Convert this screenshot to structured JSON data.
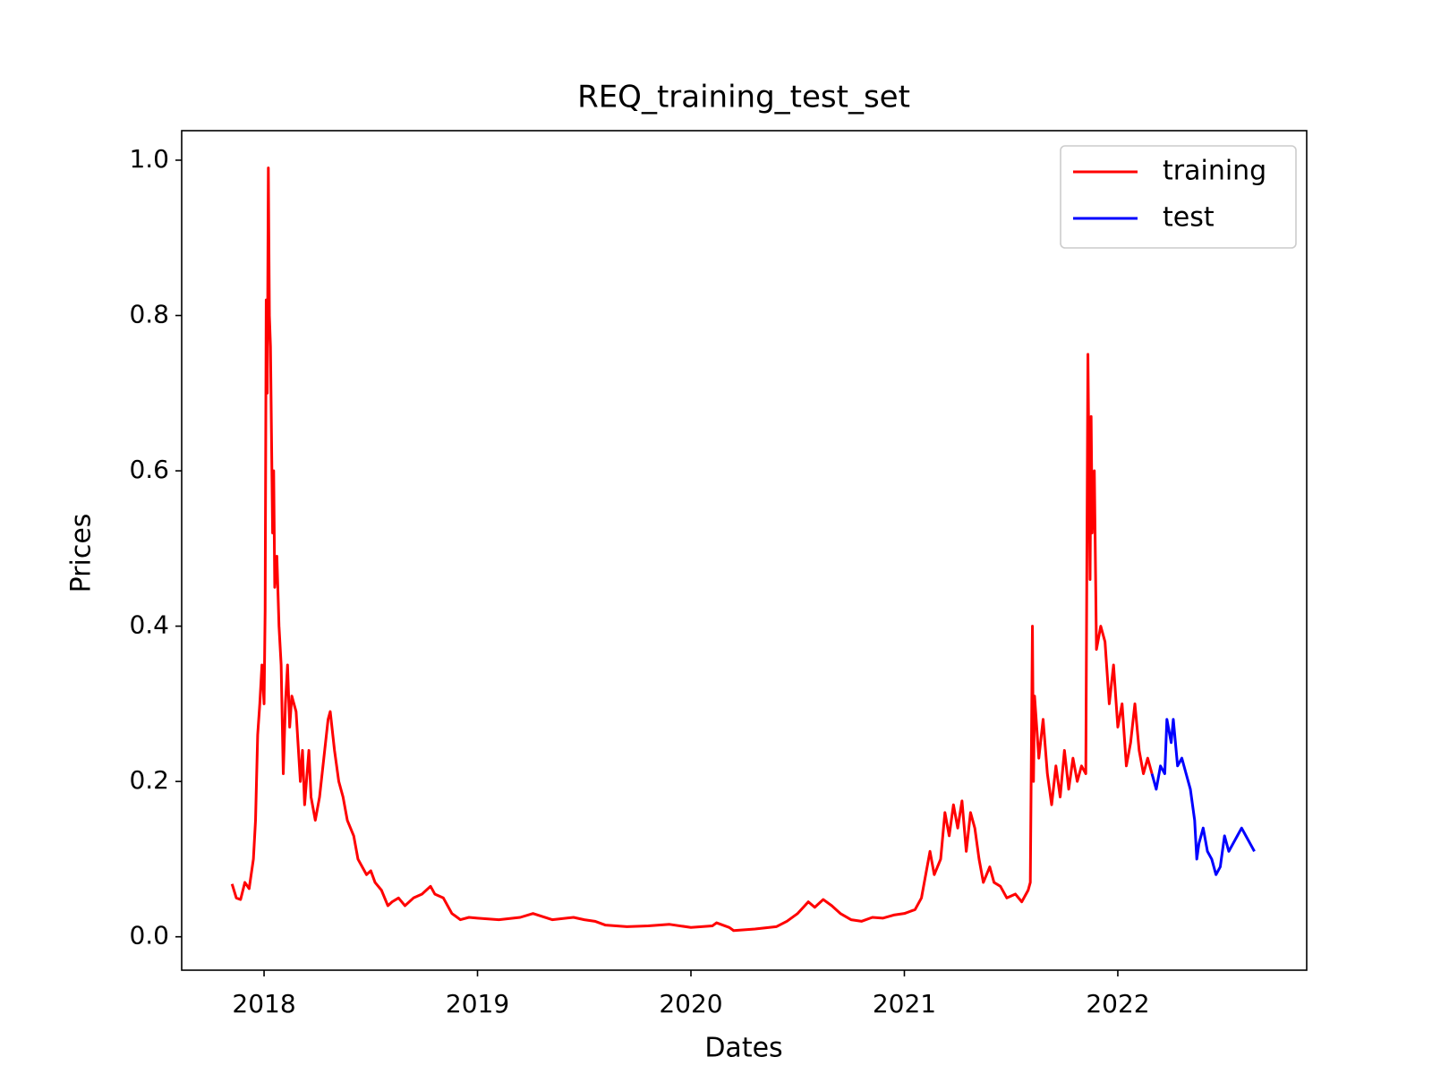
{
  "chart_data": {
    "type": "line",
    "title": "REQ_training_test_set",
    "xlabel": "Dates",
    "ylabel": "Prices",
    "xlim": [
      2017.614,
      2022.885
    ],
    "xticks": [
      2018,
      2019,
      2020,
      2021,
      2022
    ],
    "ylim": [
      -0.043,
      1.038
    ],
    "yticks": [
      {
        "value": 0,
        "label": "0.0"
      },
      0.2,
      0.4,
      0.6,
      0.8,
      {
        "value": 1,
        "label": "1.0"
      }
    ],
    "grid": false,
    "legend": "upper right",
    "series": [
      {
        "name": "training",
        "color": "#ff0000",
        "x": [
          2017.85,
          2017.87,
          2017.89,
          2017.91,
          2017.93,
          2017.95,
          2017.96,
          2017.97,
          2017.98,
          2017.99,
          2018.0,
          2018.005,
          2018.01,
          2018.015,
          2018.02,
          2018.025,
          2018.03,
          2018.04,
          2018.045,
          2018.05,
          2018.06,
          2018.07,
          2018.08,
          2018.09,
          2018.1,
          2018.11,
          2018.12,
          2018.13,
          2018.15,
          2018.17,
          2018.18,
          2018.19,
          2018.21,
          2018.22,
          2018.24,
          2018.26,
          2018.28,
          2018.3,
          2018.31,
          2018.33,
          2018.35,
          2018.37,
          2018.39,
          2018.42,
          2018.44,
          2018.46,
          2018.48,
          2018.5,
          2018.52,
          2018.55,
          2018.58,
          2018.6,
          2018.63,
          2018.66,
          2018.7,
          2018.74,
          2018.78,
          2018.8,
          2018.84,
          2018.88,
          2018.92,
          2018.96,
          2019.0,
          2019.1,
          2019.2,
          2019.26,
          2019.35,
          2019.45,
          2019.5,
          2019.55,
          2019.6,
          2019.7,
          2019.8,
          2019.9,
          2020.0,
          2020.1,
          2020.12,
          2020.18,
          2020.2,
          2020.3,
          2020.4,
          2020.45,
          2020.5,
          2020.55,
          2020.58,
          2020.62,
          2020.66,
          2020.7,
          2020.75,
          2020.8,
          2020.85,
          2020.9,
          2020.95,
          2021.0,
          2021.05,
          2021.08,
          2021.1,
          2021.12,
          2021.14,
          2021.17,
          2021.19,
          2021.21,
          2021.23,
          2021.25,
          2021.27,
          2021.29,
          2021.31,
          2021.33,
          2021.35,
          2021.37,
          2021.4,
          2021.42,
          2021.45,
          2021.48,
          2021.52,
          2021.55,
          2021.58,
          2021.59,
          2021.6,
          2021.605,
          2021.61,
          2021.63,
          2021.65,
          2021.67,
          2021.69,
          2021.71,
          2021.73,
          2021.75,
          2021.77,
          2021.79,
          2021.81,
          2021.83,
          2021.85,
          2021.86,
          2021.87,
          2021.875,
          2021.88,
          2021.89,
          2021.9,
          2021.92,
          2021.94,
          2021.96,
          2021.98,
          2022.0,
          2022.02,
          2022.04,
          2022.06,
          2022.08,
          2022.1,
          2022.12,
          2022.14,
          2022.16
        ],
        "values": [
          0.068,
          0.05,
          0.048,
          0.07,
          0.062,
          0.1,
          0.15,
          0.26,
          0.3,
          0.35,
          0.3,
          0.42,
          0.82,
          0.7,
          0.99,
          0.8,
          0.76,
          0.52,
          0.6,
          0.45,
          0.49,
          0.4,
          0.35,
          0.21,
          0.3,
          0.35,
          0.27,
          0.31,
          0.29,
          0.2,
          0.24,
          0.17,
          0.24,
          0.18,
          0.15,
          0.18,
          0.23,
          0.28,
          0.29,
          0.24,
          0.2,
          0.18,
          0.15,
          0.13,
          0.1,
          0.09,
          0.08,
          0.085,
          0.07,
          0.06,
          0.04,
          0.045,
          0.05,
          0.04,
          0.05,
          0.055,
          0.065,
          0.055,
          0.05,
          0.03,
          0.022,
          0.025,
          0.024,
          0.022,
          0.025,
          0.03,
          0.022,
          0.025,
          0.022,
          0.02,
          0.015,
          0.013,
          0.014,
          0.016,
          0.012,
          0.014,
          0.018,
          0.012,
          0.008,
          0.01,
          0.013,
          0.02,
          0.03,
          0.045,
          0.038,
          0.048,
          0.04,
          0.03,
          0.022,
          0.02,
          0.025,
          0.024,
          0.028,
          0.03,
          0.035,
          0.05,
          0.08,
          0.11,
          0.08,
          0.1,
          0.16,
          0.13,
          0.17,
          0.14,
          0.175,
          0.11,
          0.16,
          0.14,
          0.1,
          0.07,
          0.09,
          0.07,
          0.065,
          0.05,
          0.055,
          0.045,
          0.06,
          0.07,
          0.4,
          0.2,
          0.31,
          0.23,
          0.28,
          0.21,
          0.17,
          0.22,
          0.18,
          0.24,
          0.19,
          0.23,
          0.2,
          0.22,
          0.21,
          0.75,
          0.46,
          0.67,
          0.52,
          0.6,
          0.37,
          0.4,
          0.38,
          0.3,
          0.35,
          0.27,
          0.3,
          0.22,
          0.25,
          0.3,
          0.24,
          0.21,
          0.23,
          0.21
        ]
      },
      {
        "name": "test",
        "color": "#0000ff",
        "x": [
          2022.16,
          2022.18,
          2022.2,
          2022.22,
          2022.23,
          2022.25,
          2022.26,
          2022.28,
          2022.3,
          2022.32,
          2022.34,
          2022.36,
          2022.37,
          2022.38,
          2022.4,
          2022.42,
          2022.44,
          2022.46,
          2022.48,
          2022.5,
          2022.52,
          2022.54,
          2022.56,
          2022.58,
          2022.6,
          2022.62,
          2022.64
        ],
        "values": [
          0.21,
          0.19,
          0.22,
          0.21,
          0.28,
          0.25,
          0.28,
          0.22,
          0.23,
          0.21,
          0.19,
          0.15,
          0.1,
          0.12,
          0.14,
          0.11,
          0.1,
          0.08,
          0.09,
          0.13,
          0.11,
          0.12,
          0.13,
          0.14,
          0.13,
          0.12,
          0.11
        ]
      }
    ]
  }
}
